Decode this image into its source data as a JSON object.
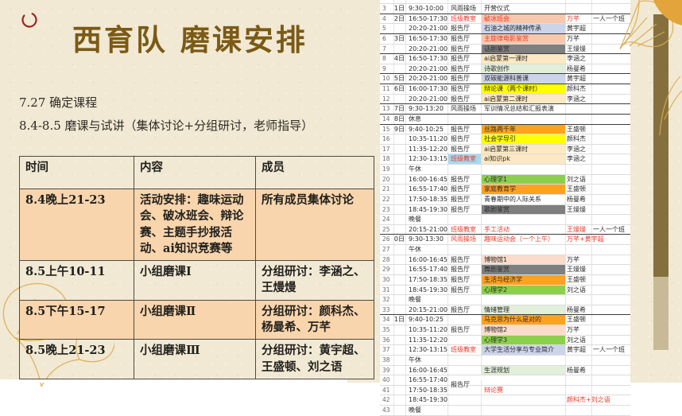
{
  "slide": {
    "title": "西育队 磨课安排",
    "intro_line1": "7.27 确定课程",
    "intro_line2": "8.4-8.5 磨课与试讲（集体讨论+分组研讨，老师指导）",
    "table": {
      "headers": [
        "时间",
        "内容",
        "成员"
      ],
      "rows": [
        {
          "time": "8.4晚上21-23",
          "content_label": "活动安排：",
          "content": "趣味运动会、破冰班会、辩论赛、主题手抄报活动、ai知识竞赛等",
          "members": "所有成员集体讨论",
          "highlight": true
        },
        {
          "time": "8.5上午10-11",
          "content_label": "",
          "content": "小组磨课Ⅰ",
          "members": "分组研讨：李涵之、王熳熳",
          "highlight": false
        },
        {
          "time": "8.5下午15-17",
          "content_label": "",
          "content": "小组磨课Ⅱ",
          "members": "分组研讨：颜科杰、杨曼希、万芊",
          "highlight": true
        },
        {
          "time": "8.5晚上21-23",
          "content_label": "",
          "content": "小组磨课Ⅲ",
          "members": "分组研讨：黄宇超、王盛顿、刘之语",
          "highlight": false
        }
      ]
    }
  },
  "sheet": {
    "rows": [
      {
        "n": 3,
        "d": "1日",
        "t": "9:30-10:00",
        "l": "风雨操场",
        "a": "开营仪式",
        "ge": 1
      },
      {
        "n": 4,
        "d": "2日",
        "t": "16:50-17:30",
        "l": "班级教室",
        "lc": "red",
        "a": "破冰班会",
        "ac": "red bg-peach",
        "p": "万芊",
        "pc": "red",
        "x": "一人一个班"
      },
      {
        "n": 5,
        "t": "20:20-21:00",
        "l": "报告厅",
        "a": "石油之城的精神传承",
        "ac": "bg-blue",
        "p": "黄宇超",
        "ge": 1
      },
      {
        "n": 6,
        "d": "3日",
        "t": "16:50-17:30",
        "l": "报告厅",
        "a": "主旋律电影鉴赏",
        "ac": "red bg-peach",
        "p": "万芊"
      },
      {
        "n": 7,
        "t": "20:20-21:00",
        "l": "报告厅",
        "a": "话剧鉴赏",
        "ac": "bg-gray",
        "p": "王熳熳",
        "ge": 1
      },
      {
        "n": 8,
        "d": "4日",
        "t": "16:50-17:30",
        "l": "报告厅",
        "a": "ai启蒙第一课时",
        "ac": "bg-cream",
        "p": "李涵之"
      },
      {
        "n": 9,
        "t": "20:20-21:00",
        "l": "报告厅",
        "a": "诗歌创作",
        "ac": "bg-lgreen",
        "p": "杨曼希",
        "ge": 1
      },
      {
        "n": 10,
        "d": "5日",
        "t": "20:20-21:00",
        "l": "报告厅",
        "a": "双碳能源科普课",
        "ac": "bg-blue",
        "p": "黄宇超",
        "ge": 1
      },
      {
        "n": 11,
        "d": "6日",
        "t": "16:00-17:30",
        "l": "报告厅",
        "a": "辩论课（两个课时）",
        "ac": "bg-yellow",
        "p": "颜科杰"
      },
      {
        "n": 12,
        "t": "20:20-21:00",
        "l": "报告厅",
        "a": "ai启蒙第二课时",
        "ac": "bg-cream",
        "p": "李涵之",
        "ge": 1
      },
      {
        "n": 13,
        "d": "7日",
        "t": "9:30-13:20",
        "l": "风雨操场",
        "a": "军训情况总结和汇报表演",
        "ge": 1
      },
      {
        "n": 14,
        "d": "8日",
        "t": "休息",
        "ge": 1
      },
      {
        "n": 15,
        "d": "9日",
        "t": "9:40-10:25",
        "l": "报告厅",
        "a": "丝路两千年",
        "ac": "bg-orange",
        "p": "王盛顿"
      },
      {
        "n": 16,
        "t": "10:35-11:20",
        "l": "报告厅",
        "a": "社会学导引",
        "ac": "bg-yellow",
        "p": "颜科杰"
      },
      {
        "n": 17,
        "t": "11:35-12:20",
        "l": "报告厅",
        "a": "ai启蒙第三课时",
        "ac": "bg-cream",
        "p": "李涵之"
      },
      {
        "n": 18,
        "t": "12:30-13:15",
        "l": "班级教室",
        "lc": "red bg-lblue",
        "a": "ai知识pk",
        "ac": "bg-cream",
        "p": "李涵之"
      },
      {
        "n": 19,
        "t": "午休"
      },
      {
        "n": 20,
        "t": "16:00-16:45",
        "l": "报告厅",
        "a": "心理学1",
        "ac": "bg-green",
        "p": "刘之语"
      },
      {
        "n": 21,
        "t": "16:55-17:40",
        "l": "报告厅",
        "a": "家庭教育学",
        "ac": "bg-orange",
        "p": "王盛顿"
      },
      {
        "n": 22,
        "t": "17:50-18:35",
        "l": "报告厅",
        "a": "青春期中的人际关系",
        "p": "杨曼希"
      },
      {
        "n": 23,
        "t": "18:45-19:30",
        "l": "报告厅",
        "a": "歌剧鉴赏",
        "ac": "bg-gray",
        "p": "王熳熳"
      },
      {
        "n": 24,
        "t": "晚餐"
      },
      {
        "n": 25,
        "t": "20:15-21:00",
        "l": "班级教室",
        "lc": "red",
        "a": "手工活动",
        "ac": "red",
        "p": "王熳熳",
        "pc": "red",
        "x": "一人一个班",
        "ge": 1
      },
      {
        "n": 26,
        "d": "10日",
        "t": "9:30-13:30",
        "l": "风雨操场",
        "lc": "red",
        "a": "趣味运动会（一个上午）",
        "ac": "red",
        "p": "万芊+黄宇超",
        "pc": "red"
      },
      {
        "n": 27,
        "t": "午休"
      },
      {
        "n": 28,
        "t": "16:00-16:45",
        "l": "报告厅",
        "a": "博物馆1",
        "ac": "bg-lpeach",
        "p": "万芊"
      },
      {
        "n": 29,
        "t": "16:55-17:40",
        "l": "报告厅",
        "a": "舞剧鉴赏",
        "ac": "bg-gray",
        "p": "王熳熳"
      },
      {
        "n": 30,
        "t": "17:50-18:35",
        "l": "报告厅",
        "a": "生活与经济学",
        "ac": "bg-orange",
        "p": "王盛顿"
      },
      {
        "n": 31,
        "t": "18:45-19:30",
        "l": "报告厅",
        "a": "心理学2",
        "ac": "bg-green",
        "p": "刘之语"
      },
      {
        "n": 32,
        "t": "晚餐"
      },
      {
        "n": 33,
        "t": "20:15-21:00",
        "l": "报告厅",
        "a": "情绪管理",
        "ac": "bg-lgreen",
        "p": "杨曼希",
        "ge": 1
      },
      {
        "n": 34,
        "d": "11日",
        "t": "9:40-10:25",
        "a": "马克思为什么是对的",
        "ac": "bg-orange",
        "p": "王盛顿"
      },
      {
        "n": 35,
        "t": "10:35-11:20",
        "l": "报告厅",
        "a": "博物馆2",
        "ac": "bg-lpeach",
        "p": "万芊"
      },
      {
        "n": 36,
        "t": "11:35-12:20",
        "a": "心理学3",
        "ac": "bg-green",
        "p": "刘之语"
      },
      {
        "n": 37,
        "t": "12:30-13:15",
        "l": "班级教室",
        "lc": "red",
        "a": "大学生活分享与专业简介",
        "ac": "bg-blue",
        "p": "黄宇超",
        "x": "一人一个班"
      },
      {
        "n": 38,
        "t": "午休"
      },
      {
        "n": 39,
        "t": "16:00-16:45",
        "a": "生涯规划",
        "ac": "bg-lgreen",
        "p": "杨曼希"
      },
      {
        "n": 40,
        "t": "16:55-17:40",
        "l": "报告厅",
        "lc": "shift"
      },
      {
        "n": 41,
        "t": "17:50-18:35",
        "a": "辩论赛",
        "ac": "red"
      },
      {
        "n": 42,
        "t": "18:45-19:30",
        "p": "颜科杰+刘之语",
        "pc": "red"
      },
      {
        "n": 43,
        "t": "晚餐"
      }
    ]
  },
  "colors": {
    "slide_background": "#f1e9d4",
    "title_brown": "#7b5a16",
    "table_highlight": "#f8d5ad",
    "annotation_red": "#e8392a",
    "cell_peach": "#f7c8ab",
    "cell_lavender": "#ccd4ea",
    "cell_darkgray": "#7f7f7f",
    "cell_cream": "#fce8c2",
    "cell_yellow": "#ffff00",
    "cell_lightgreen": "#e2efda",
    "cell_orange": "#ffa21f",
    "cell_green": "#8ccf4d",
    "cell_lightpeach": "#fbdcca",
    "cell_lightblue": "#a6d9f0",
    "bar_brown": "#85703d",
    "bar_tan": "#c9ba97",
    "ginkgo_gold": "#d9a94c"
  }
}
